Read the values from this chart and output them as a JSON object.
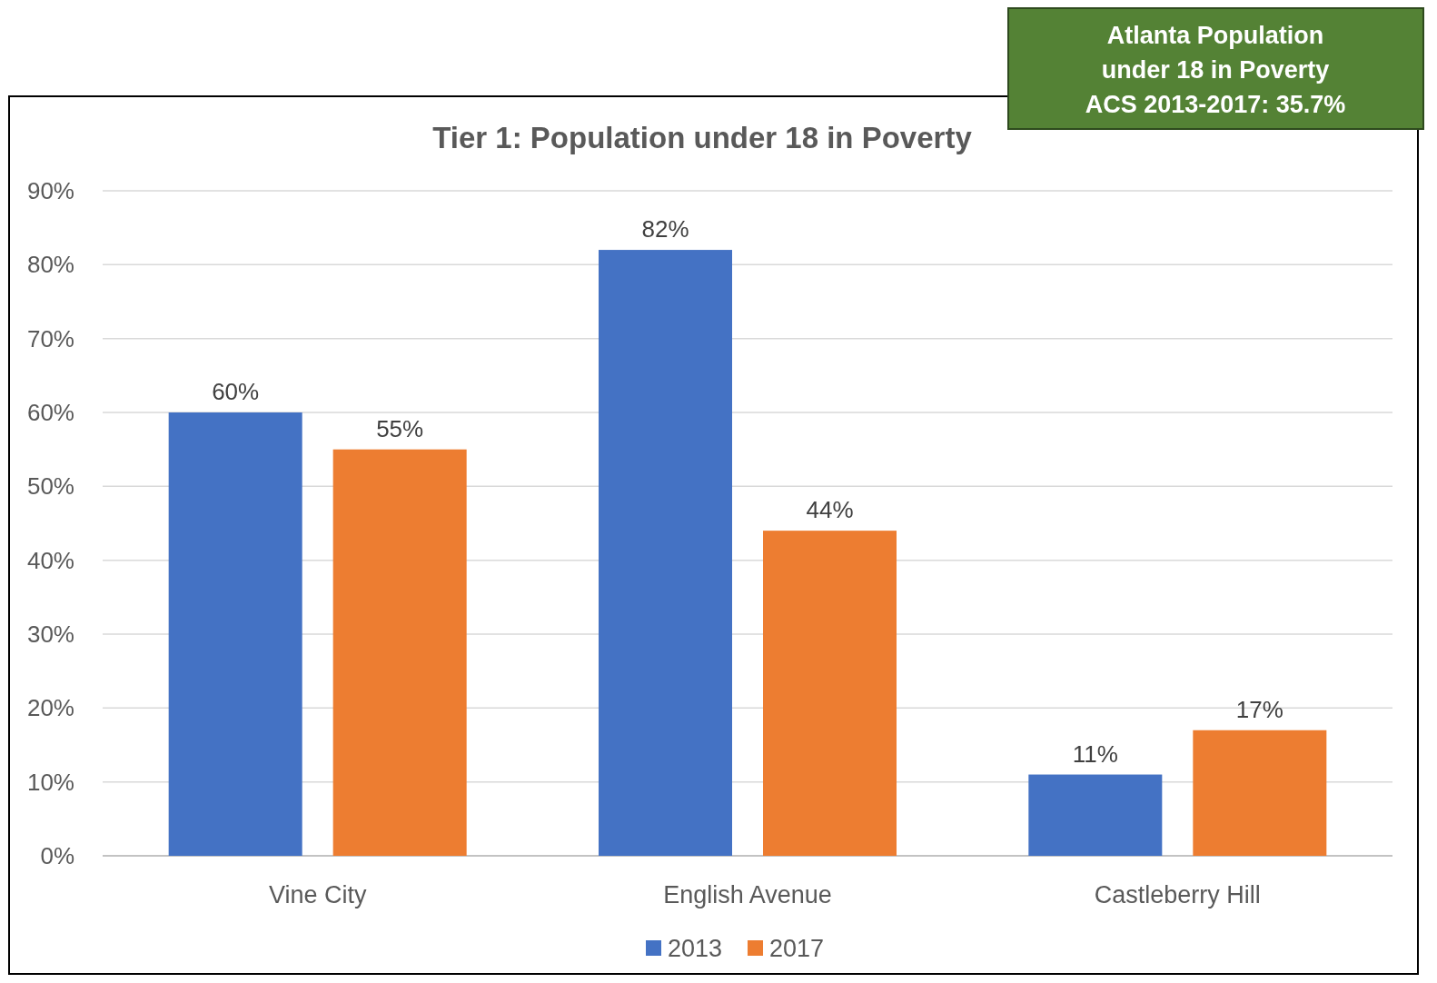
{
  "chart_data": {
    "type": "bar",
    "title": "Tier 1: Population under 18 in Poverty",
    "categories": [
      "Vine City",
      "English Avenue",
      "Castleberry Hill"
    ],
    "series": [
      {
        "name": "2013",
        "color": "#4472c4",
        "values": [
          60,
          82,
          11
        ],
        "value_labels": [
          "60%",
          "82%",
          "11%"
        ]
      },
      {
        "name": "2017",
        "color": "#ed7d31",
        "values": [
          55,
          44,
          17
        ],
        "value_labels": [
          "55%",
          "44%",
          "17%"
        ]
      }
    ],
    "ylim": [
      0,
      90
    ],
    "yticks": [
      {
        "value": 0,
        "label": "0%"
      },
      {
        "value": 10,
        "label": "10%"
      },
      {
        "value": 20,
        "label": "20%"
      },
      {
        "value": 30,
        "label": "30%"
      },
      {
        "value": 40,
        "label": "40%"
      },
      {
        "value": 50,
        "label": "50%"
      },
      {
        "value": 60,
        "label": "60%"
      },
      {
        "value": 70,
        "label": "70%"
      },
      {
        "value": 80,
        "label": "80%"
      },
      {
        "value": 90,
        "label": "90%"
      }
    ],
    "grid": "y",
    "legend": "bottom",
    "annotations": [
      "Atlanta Population\nunder 18 in Poverty\nACS 2013-2017: 35.7%"
    ]
  }
}
